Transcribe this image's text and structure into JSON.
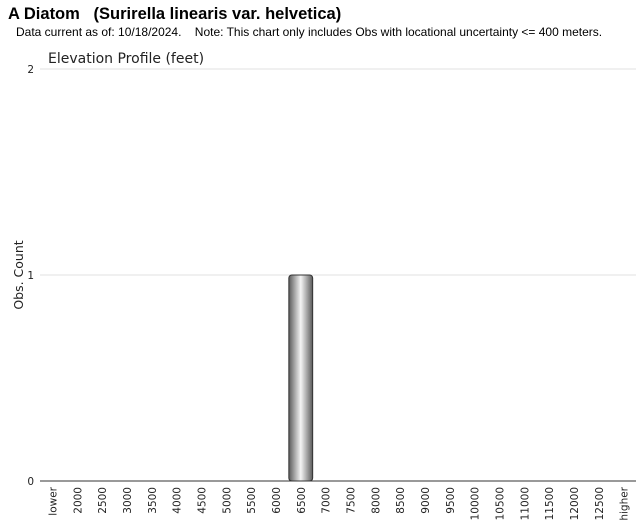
{
  "header": {
    "title": "A Diatom   (Surirella linearis var. helvetica)",
    "data_current_label": "Data current as of: 10/18/2024.",
    "note": "Note: This chart only includes Obs with locational uncertainty <= 400 meters."
  },
  "chart_data": {
    "type": "bar",
    "title": "Elevation Profile (feet)",
    "xlabel": "",
    "ylabel": "Obs. Count",
    "ylim": [
      0,
      2
    ],
    "yticks": [
      0,
      1,
      2
    ],
    "grid": true,
    "legend": "none",
    "categories": [
      "lower",
      "2000",
      "2500",
      "3000",
      "3500",
      "4000",
      "4500",
      "5000",
      "5500",
      "6000",
      "6500",
      "7000",
      "7500",
      "8000",
      "8500",
      "9000",
      "9500",
      "10000",
      "10500",
      "11000",
      "11500",
      "12000",
      "12500",
      "higher"
    ],
    "values": [
      0,
      0,
      0,
      0,
      0,
      0,
      0,
      0,
      0,
      0,
      1,
      0,
      0,
      0,
      0,
      0,
      0,
      0,
      0,
      0,
      0,
      0,
      0,
      0
    ],
    "bar_color": "#9a9a9a"
  }
}
